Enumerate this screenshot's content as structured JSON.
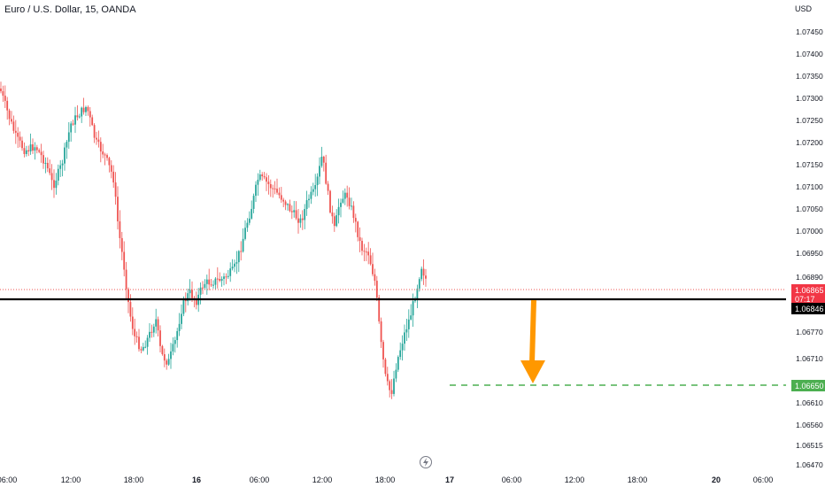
{
  "header": {
    "title": "Euro / U.S. Dollar, 15, OANDA",
    "currency": "USD"
  },
  "colors": {
    "up": "#26a69a",
    "down": "#ef5350",
    "support_line": "#000000",
    "target_line": "#4caf50",
    "arrow": "#ff9800"
  },
  "chart_data": {
    "type": "candlestick",
    "y_ticks": [
      "1.07450",
      "1.07400",
      "1.07350",
      "1.07300",
      "1.07250",
      "1.07200",
      "1.07150",
      "1.07100",
      "1.07050",
      "1.07000",
      "1.06950",
      "1.06890",
      "1.06770",
      "1.06710",
      "1.06610",
      "1.06560",
      "1.06515",
      "1.06470"
    ],
    "x_ticks": [
      {
        "label": "06:00",
        "bold": false
      },
      {
        "label": "12:00",
        "bold": false
      },
      {
        "label": "18:00",
        "bold": false
      },
      {
        "label": "16",
        "bold": true
      },
      {
        "label": "06:00",
        "bold": false
      },
      {
        "label": "12:00",
        "bold": false
      },
      {
        "label": "18:00",
        "bold": false
      },
      {
        "label": "17",
        "bold": true
      },
      {
        "label": "06:00",
        "bold": false
      },
      {
        "label": "12:00",
        "bold": false
      },
      {
        "label": "18:00",
        "bold": false
      },
      {
        "label": "20",
        "bold": true
      },
      {
        "label": "06:00",
        "bold": false
      }
    ],
    "last_price": "1.06865",
    "countdown": "07:17",
    "support_level": "1.06846",
    "target_level": "1.06650",
    "ylim": [
      1.0647,
      1.0747
    ]
  }
}
